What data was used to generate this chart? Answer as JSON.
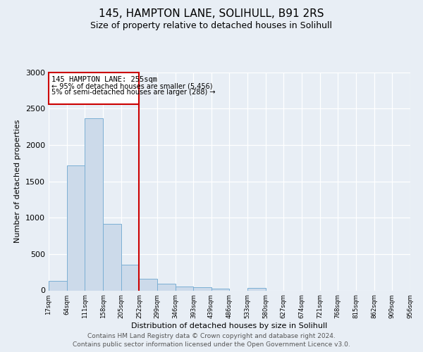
{
  "title": "145, HAMPTON LANE, SOLIHULL, B91 2RS",
  "subtitle": "Size of property relative to detached houses in Solihull",
  "xlabel": "Distribution of detached houses by size in Solihull",
  "ylabel": "Number of detached properties",
  "bar_left_edges": [
    17,
    64,
    111,
    158,
    205,
    252,
    299,
    346,
    393,
    439,
    486,
    533,
    580,
    627,
    674,
    721,
    768,
    815,
    862,
    909
  ],
  "bar_heights": [
    130,
    1720,
    2370,
    910,
    350,
    155,
    90,
    50,
    40,
    25,
    0,
    30,
    0,
    0,
    0,
    0,
    0,
    0,
    0,
    0
  ],
  "bin_width": 47,
  "tick_labels": [
    "17sqm",
    "64sqm",
    "111sqm",
    "158sqm",
    "205sqm",
    "252sqm",
    "299sqm",
    "346sqm",
    "393sqm",
    "439sqm",
    "486sqm",
    "533sqm",
    "580sqm",
    "627sqm",
    "674sqm",
    "721sqm",
    "768sqm",
    "815sqm",
    "862sqm",
    "909sqm",
    "956sqm"
  ],
  "bar_color": "#ccdaea",
  "bar_edge_color": "#7bafd4",
  "vline_x": 252,
  "vline_color": "#cc0000",
  "annotation_title": "145 HAMPTON LANE: 255sqm",
  "annotation_line1": "← 95% of detached houses are smaller (5,456)",
  "annotation_line2": "5% of semi-detached houses are larger (288) →",
  "annotation_box_color": "#ffffff",
  "annotation_box_edge": "#cc0000",
  "ylim": [
    0,
    3000
  ],
  "yticks": [
    0,
    500,
    1000,
    1500,
    2000,
    2500,
    3000
  ],
  "bg_color": "#e8eef5",
  "plot_bg_color": "#e8eef5",
  "footer_line1": "Contains HM Land Registry data © Crown copyright and database right 2024.",
  "footer_line2": "Contains public sector information licensed under the Open Government Licence v3.0.",
  "title_fontsize": 11,
  "subtitle_fontsize": 9,
  "footer_fontsize": 6.5
}
